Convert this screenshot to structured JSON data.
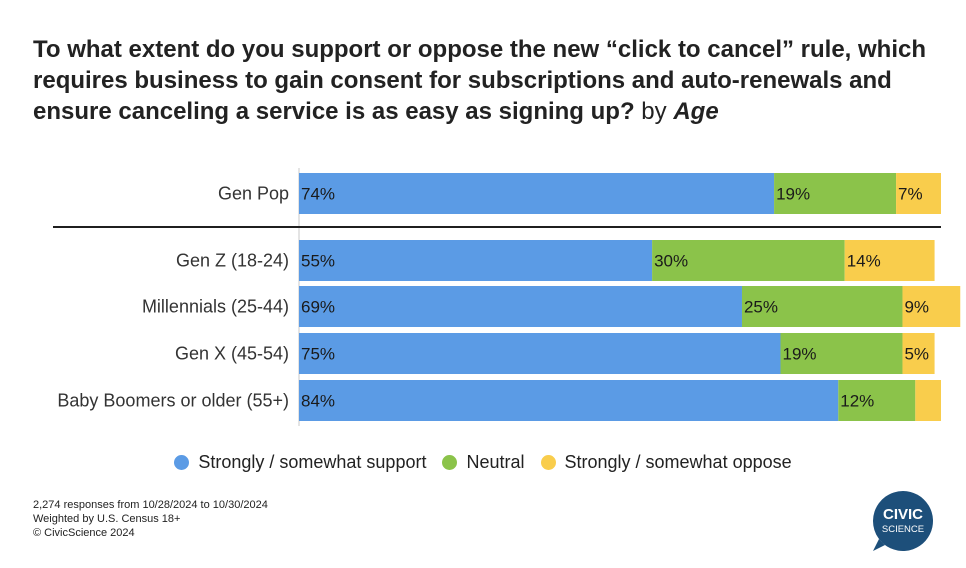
{
  "title": {
    "main": "To what extent do you support or oppose the new “click to cancel” rule, which requires business to gain consent for subscriptions and auto-renewals and ensure canceling a service is as easy as signing up?",
    "suffix": "by",
    "suffix_em": "Age"
  },
  "chart_data": {
    "type": "bar",
    "orientation": "horizontal",
    "stacked": true,
    "percent": true,
    "categories": [
      "Gen Pop",
      "Gen Z (18-24)",
      "Millennials (25-44)",
      "Gen X (45-54)",
      "Baby Boomers or older (55+)"
    ],
    "series": [
      {
        "name": "Strongly / somewhat support",
        "color": "#5b9be5",
        "values": [
          74,
          55,
          69,
          75,
          84
        ],
        "labels": [
          "74%",
          "55%",
          "69%",
          "75%",
          "84%"
        ]
      },
      {
        "name": "Neutral",
        "color": "#8bc34a",
        "values": [
          19,
          30,
          25,
          19,
          12
        ],
        "labels": [
          "19%",
          "30%",
          "25%",
          "19%",
          "12%"
        ]
      },
      {
        "name": "Strongly / somewhat oppose",
        "color": "#f9cd4c",
        "values": [
          7,
          14,
          9,
          5,
          4
        ],
        "labels": [
          "7%",
          "14%",
          "9%",
          "5%",
          ""
        ]
      }
    ],
    "xlim": [
      0,
      100
    ],
    "legend_position": "bottom",
    "grid": false
  },
  "footer": {
    "lines": [
      "2,274 responses from 10/28/2024 to 10/30/2024",
      "Weighted by U.S. Census 18+",
      "© CivicScience 2024"
    ]
  },
  "logo": {
    "line1": "CIVIC",
    "line2": "SCIENCE",
    "color": "#1d4f7a"
  }
}
